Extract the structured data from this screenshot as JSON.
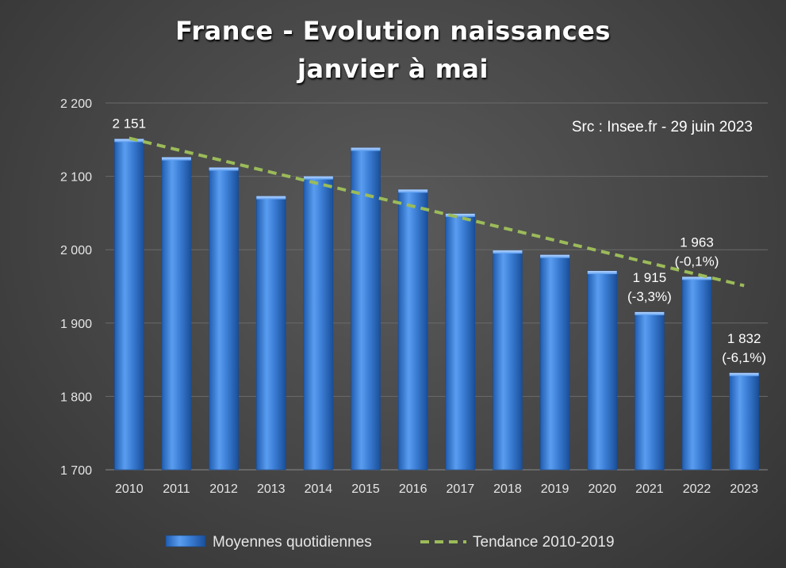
{
  "chart_data": {
    "type": "bar",
    "title_line1": "France - Evolution naissances",
    "title_line2": "janvier à mai",
    "source_note": "Src : Insee.fr - 29 juin 2023",
    "categories": [
      "2010",
      "2011",
      "2012",
      "2013",
      "2014",
      "2015",
      "2016",
      "2017",
      "2018",
      "2019",
      "2020",
      "2021",
      "2022",
      "2023"
    ],
    "series": [
      {
        "name": "Moyennes quotidiennes",
        "type": "bar",
        "values": [
          2151,
          2126,
          2112,
          2073,
          2100,
          2139,
          2082,
          2049,
          1999,
          1993,
          1971,
          1915,
          1963,
          1832
        ]
      },
      {
        "name": "Tendance 2010-2019",
        "type": "line",
        "style": "dashed",
        "x_range": [
          "2010",
          "2023"
        ],
        "y_range": [
          2152,
          1951
        ]
      }
    ],
    "ylim": [
      1700,
      2200
    ],
    "yticks": [
      1700,
      1800,
      1900,
      2000,
      2100,
      2200
    ],
    "ytick_labels": [
      "1 700",
      "1 800",
      "1 900",
      "2 000",
      "2 100",
      "2 200"
    ],
    "data_labels": [
      {
        "category": "2010",
        "lines": [
          "2 151"
        ]
      },
      {
        "category": "2021",
        "lines": [
          "1 915",
          "(-3,3%)"
        ]
      },
      {
        "category": "2022",
        "lines": [
          "1 963",
          "(-0,1%)"
        ]
      },
      {
        "category": "2023",
        "lines": [
          "1 832",
          "(-6,1%)"
        ]
      }
    ],
    "grid": true,
    "legend_position": "bottom",
    "colors": {
      "bar": "#3c7fd6",
      "trend": "#9bbb59",
      "text": "#ffffff",
      "axis_text": "#e6e6e6"
    }
  }
}
